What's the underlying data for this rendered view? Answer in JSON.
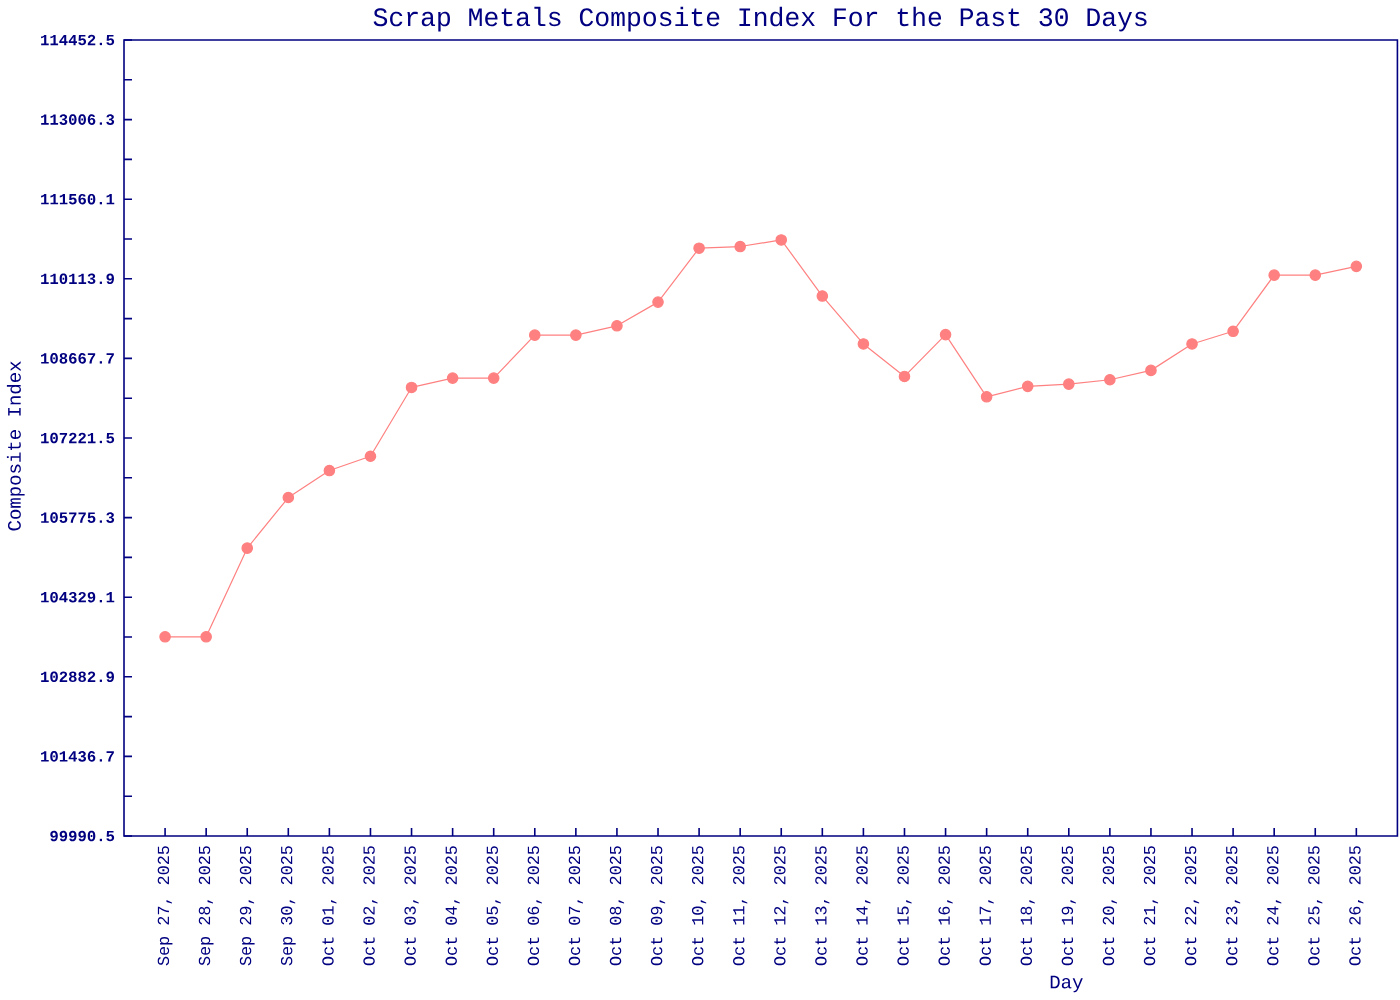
{
  "chart_data": {
    "type": "line",
    "title": "Scrap Metals Composite Index For the Past 30 Days",
    "xlabel": "Day",
    "ylabel": "Composite Index",
    "categories": [
      "Sep 27, 2025",
      "Sep 28, 2025",
      "Sep 29, 2025",
      "Sep 30, 2025",
      "Oct 01, 2025",
      "Oct 02, 2025",
      "Oct 03, 2025",
      "Oct 04, 2025",
      "Oct 05, 2025",
      "Oct 06, 2025",
      "Oct 07, 2025",
      "Oct 08, 2025",
      "Oct 09, 2025",
      "Oct 10, 2025",
      "Oct 11, 2025",
      "Oct 12, 2025",
      "Oct 13, 2025",
      "Oct 14, 2025",
      "Oct 15, 2025",
      "Oct 16, 2025",
      "Oct 17, 2025",
      "Oct 18, 2025",
      "Oct 19, 2025",
      "Oct 20, 2025",
      "Oct 21, 2025",
      "Oct 22, 2025",
      "Oct 23, 2025",
      "Oct 24, 2025",
      "Oct 25, 2025",
      "Oct 26, 2025"
    ],
    "values": [
      103610,
      103610,
      105220,
      106140,
      106630,
      106890,
      108140,
      108310,
      108310,
      109090,
      109090,
      109260,
      109690,
      110670,
      110700,
      110820,
      109800,
      108930,
      108340,
      109100,
      107970,
      108160,
      108200,
      108280,
      108450,
      108930,
      109160,
      110180,
      110180,
      110340
    ],
    "color": "#ff8080",
    "marker": "circle",
    "line_style": "solid",
    "ylim": [
      99990.5,
      114452.5
    ],
    "yticks": [
      99990.5,
      {
        "value": 100713.6,
        "label": null
      },
      101436.7,
      {
        "value": 102159.8,
        "label": null
      },
      102882.9,
      {
        "value": 103606.0,
        "label": null
      },
      104329.1,
      {
        "value": 105052.2,
        "label": null
      },
      105775.3,
      {
        "value": 106498.4,
        "label": null
      },
      107221.5,
      {
        "value": 107944.6,
        "label": null
      },
      108667.7,
      {
        "value": 109390.8,
        "label": null
      },
      110113.9,
      {
        "value": 110837.0,
        "label": null
      },
      111560.1,
      {
        "value": 112283.2,
        "label": null
      },
      113006.3,
      {
        "value": 113729.4,
        "label": null
      },
      114452.5
    ]
  }
}
